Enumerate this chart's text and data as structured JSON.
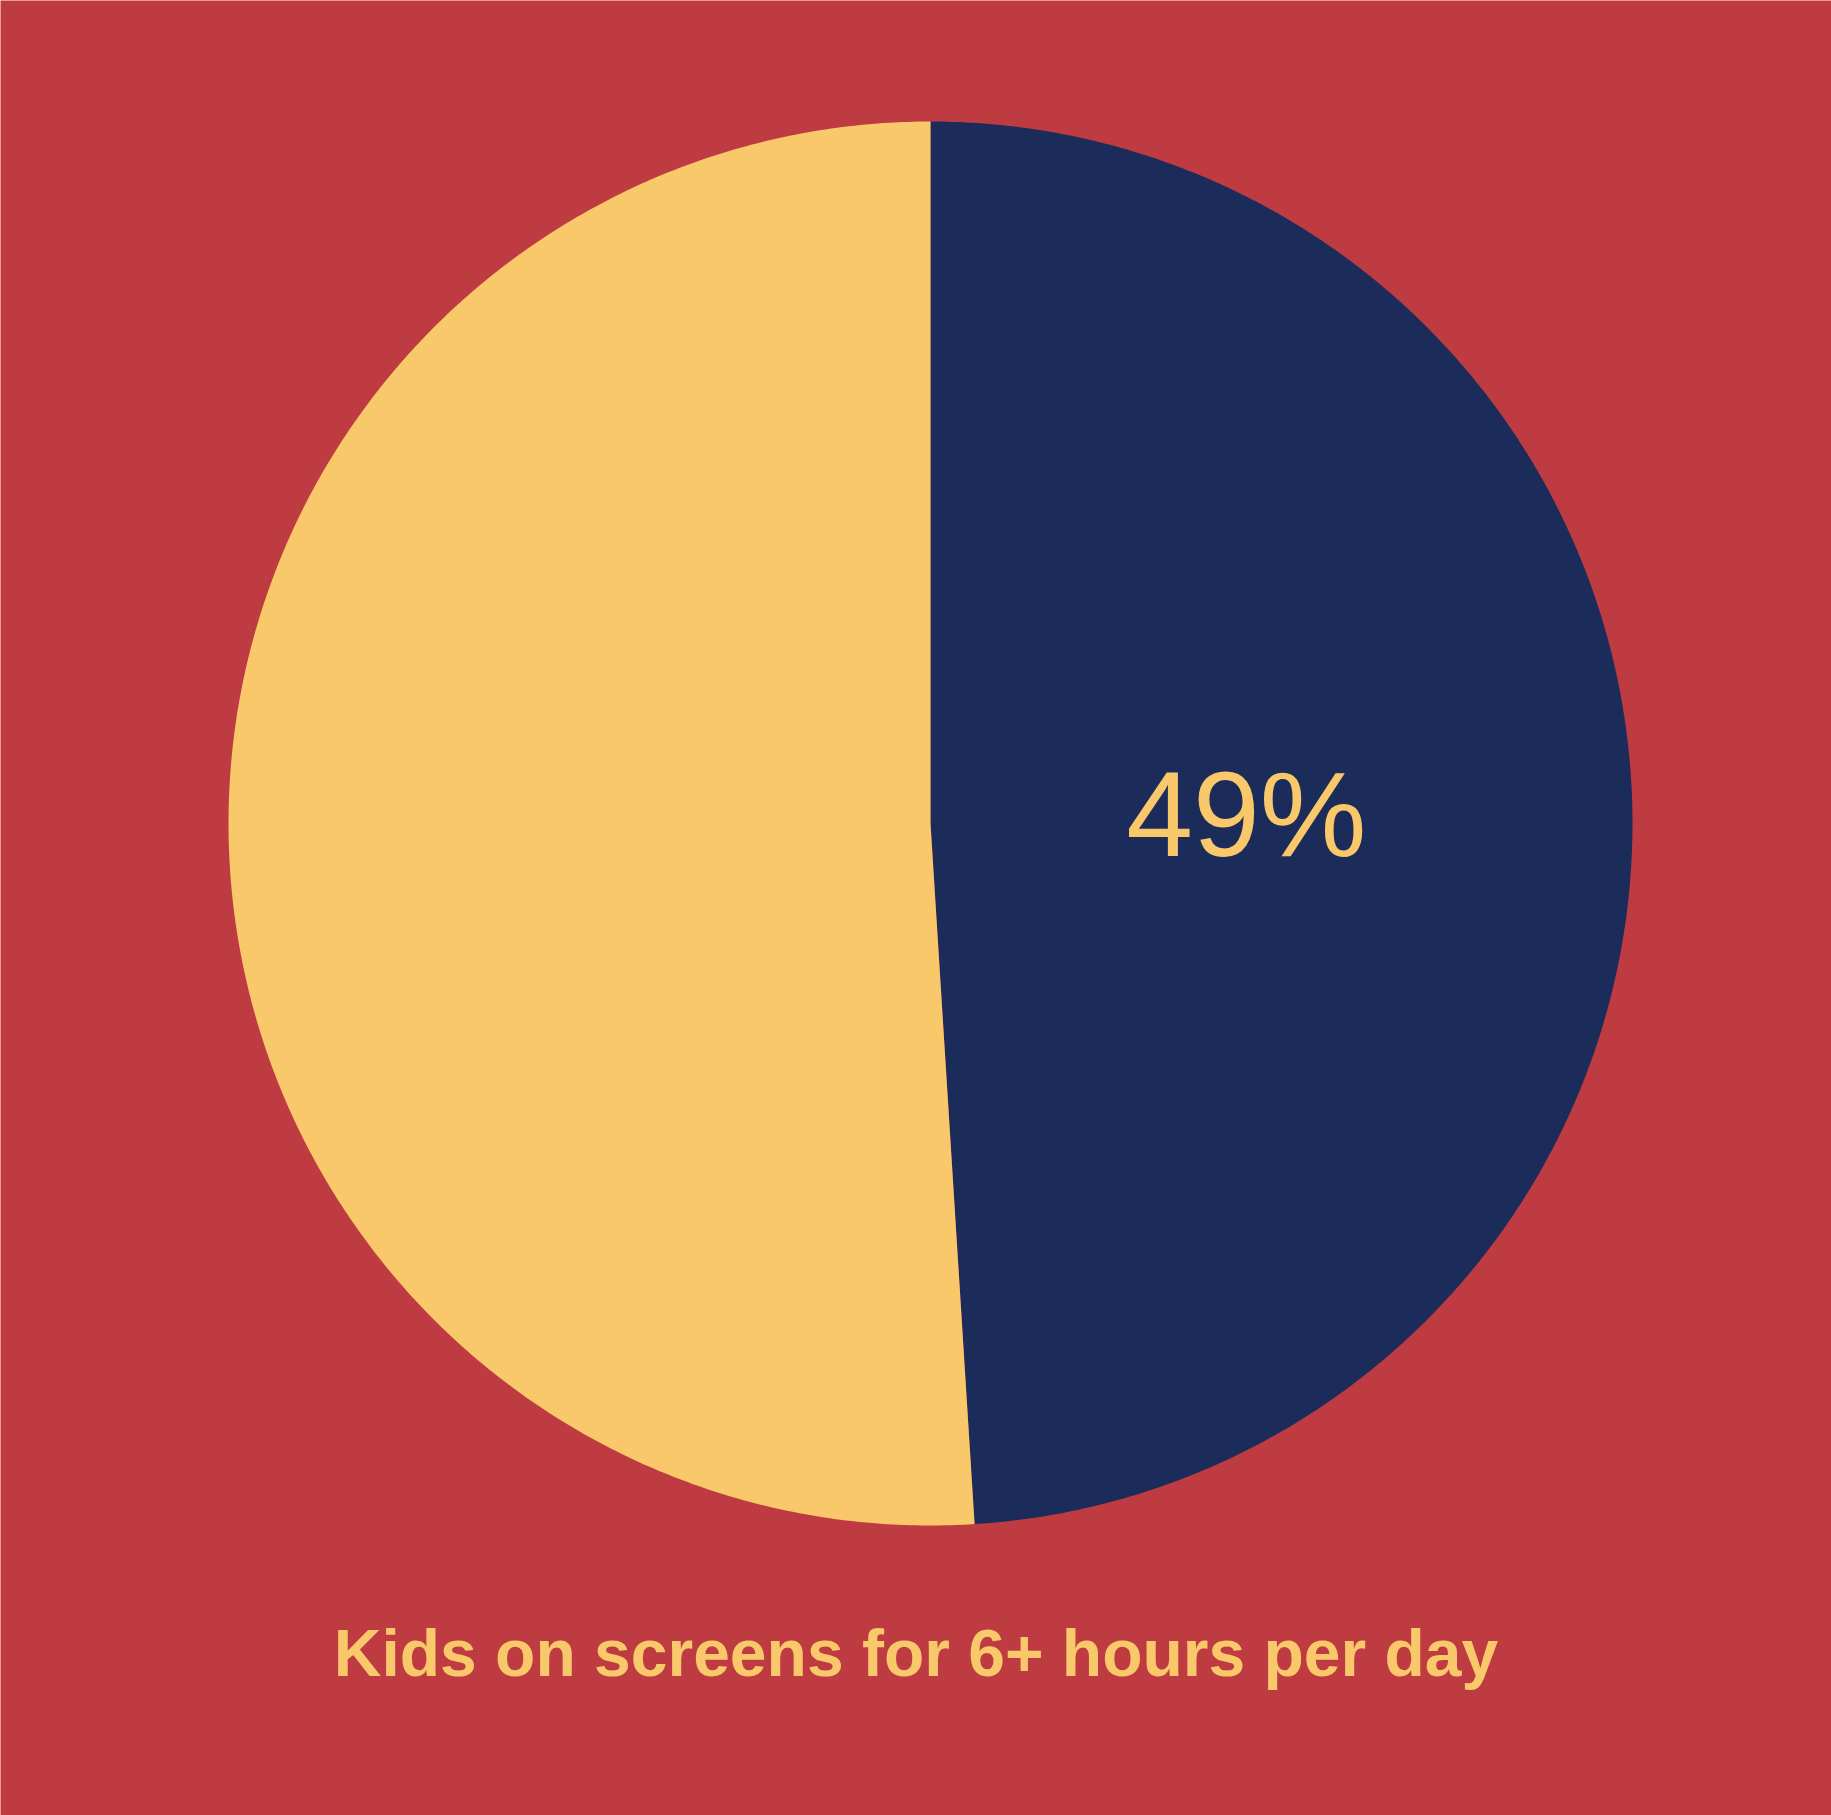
{
  "chart_data": {
    "type": "pie",
    "title": "Kids on screens for 6+ hours per day",
    "categories": [
      null,
      null
    ],
    "values": [
      49,
      51
    ],
    "colors": [
      "#1b2c5a",
      "#f9c86a"
    ],
    "value_labels": [
      "49%",
      null
    ]
  }
}
